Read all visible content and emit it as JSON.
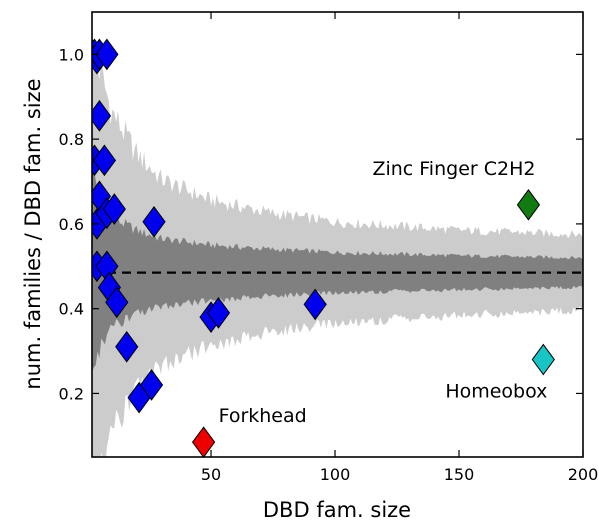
{
  "chart_data": {
    "type": "scatter",
    "xlabel": "DBD fam. size",
    "ylabel": "num. families / DBD fam. size",
    "xlim": [
      2,
      200
    ],
    "ylim": [
      0.05,
      1.1
    ],
    "xticks": [
      50,
      100,
      150,
      200
    ],
    "yticks": [
      0.2,
      0.4,
      0.6,
      0.8,
      1.0
    ],
    "ytick_labels": [
      "0.2",
      "0.4",
      "0.6",
      "0.8",
      "1.0"
    ],
    "grid": false,
    "reference_line": {
      "y": 0.485,
      "style": "dashed",
      "color": "#000000"
    },
    "bands": {
      "outer_color": "#cccccc",
      "inner_color": "#808080",
      "center": 0.485,
      "outer_halfwidth": [
        [
          2,
          0.5
        ],
        [
          5,
          0.48
        ],
        [
          10,
          0.38
        ],
        [
          20,
          0.28
        ],
        [
          30,
          0.22
        ],
        [
          50,
          0.17
        ],
        [
          75,
          0.14
        ],
        [
          100,
          0.12
        ],
        [
          150,
          0.1
        ],
        [
          200,
          0.09
        ]
      ],
      "inner_halfwidth": [
        [
          2,
          0.25
        ],
        [
          5,
          0.18
        ],
        [
          10,
          0.13
        ],
        [
          20,
          0.1
        ],
        [
          30,
          0.08
        ],
        [
          50,
          0.065
        ],
        [
          75,
          0.055
        ],
        [
          100,
          0.048
        ],
        [
          150,
          0.04
        ],
        [
          200,
          0.035
        ]
      ]
    },
    "series": [
      {
        "color": "#0000ee",
        "marker": "diamond",
        "points": [
          [
            2,
            1.0
          ],
          [
            3,
            1.0
          ],
          [
            4,
            0.99
          ],
          [
            5,
            1.0
          ],
          [
            8,
            1.0
          ],
          [
            5,
            0.855
          ],
          [
            3,
            0.75
          ],
          [
            7,
            0.75
          ],
          [
            5,
            0.665
          ],
          [
            4,
            0.6
          ],
          [
            8,
            0.625
          ],
          [
            11,
            0.635
          ],
          [
            4,
            0.5
          ],
          [
            8,
            0.5
          ],
          [
            9,
            0.45
          ],
          [
            12,
            0.415
          ],
          [
            16,
            0.31
          ],
          [
            21,
            0.19
          ],
          [
            26,
            0.22
          ],
          [
            27,
            0.605
          ],
          [
            50,
            0.38
          ],
          [
            53,
            0.39
          ],
          [
            92,
            0.41
          ]
        ]
      },
      {
        "name": "Zinc Finger C2H2",
        "color": "#117a11",
        "marker": "diamond",
        "points": [
          [
            178,
            0.645
          ]
        ]
      },
      {
        "name": "Homeobox",
        "color": "#19c4c4",
        "marker": "diamond",
        "points": [
          [
            184,
            0.28
          ]
        ]
      },
      {
        "name": "Forkhead",
        "color": "#ee0000",
        "marker": "diamond",
        "points": [
          [
            47,
            0.085
          ]
        ]
      }
    ],
    "annotations": [
      {
        "text": "Zinc Finger C2H2",
        "x": 178,
        "y": 0.645
      },
      {
        "text": "Homeobox",
        "x": 184,
        "y": 0.28
      },
      {
        "text": "Forkhead",
        "x": 47,
        "y": 0.085
      }
    ]
  }
}
